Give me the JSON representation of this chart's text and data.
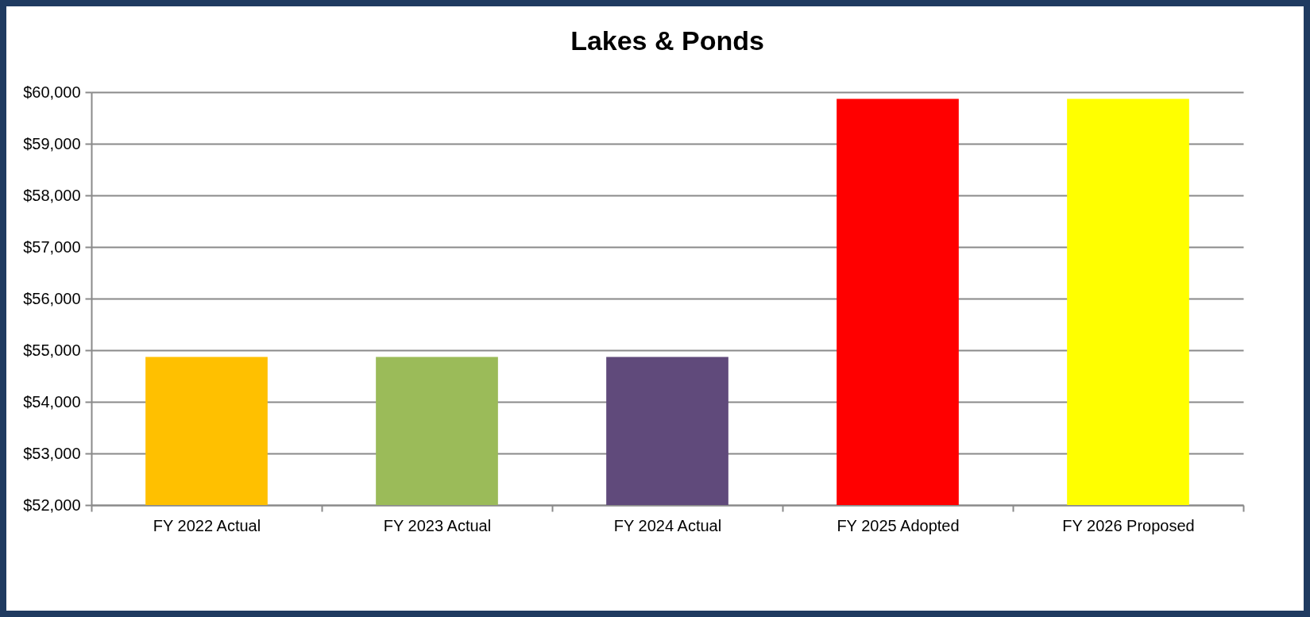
{
  "chart_data": {
    "type": "bar",
    "title": "Lakes & Ponds",
    "categories": [
      "FY 2022 Actual",
      "FY 2023 Actual",
      "FY 2024 Actual",
      "FY 2025 Adopted",
      "FY 2026 Proposed"
    ],
    "values": [
      54870,
      54870,
      54870,
      59870,
      59870
    ],
    "colors": [
      "#ffc000",
      "#9bbb59",
      "#604a7b",
      "#ff0000",
      "#ffff00"
    ],
    "ylim": [
      52000,
      60000
    ],
    "yticks": [
      {
        "value": 52000,
        "label": "$52,000"
      },
      {
        "value": 53000,
        "label": "$53,000"
      },
      {
        "value": 54000,
        "label": "$54,000"
      },
      {
        "value": 55000,
        "label": "$55,000"
      },
      {
        "value": 56000,
        "label": "$56,000"
      },
      {
        "value": 57000,
        "label": "$57,000"
      },
      {
        "value": 58000,
        "label": "$58,000"
      },
      {
        "value": 59000,
        "label": "$59,000"
      },
      {
        "value": 60000,
        "label": "$60,000"
      }
    ],
    "grid": "y"
  }
}
